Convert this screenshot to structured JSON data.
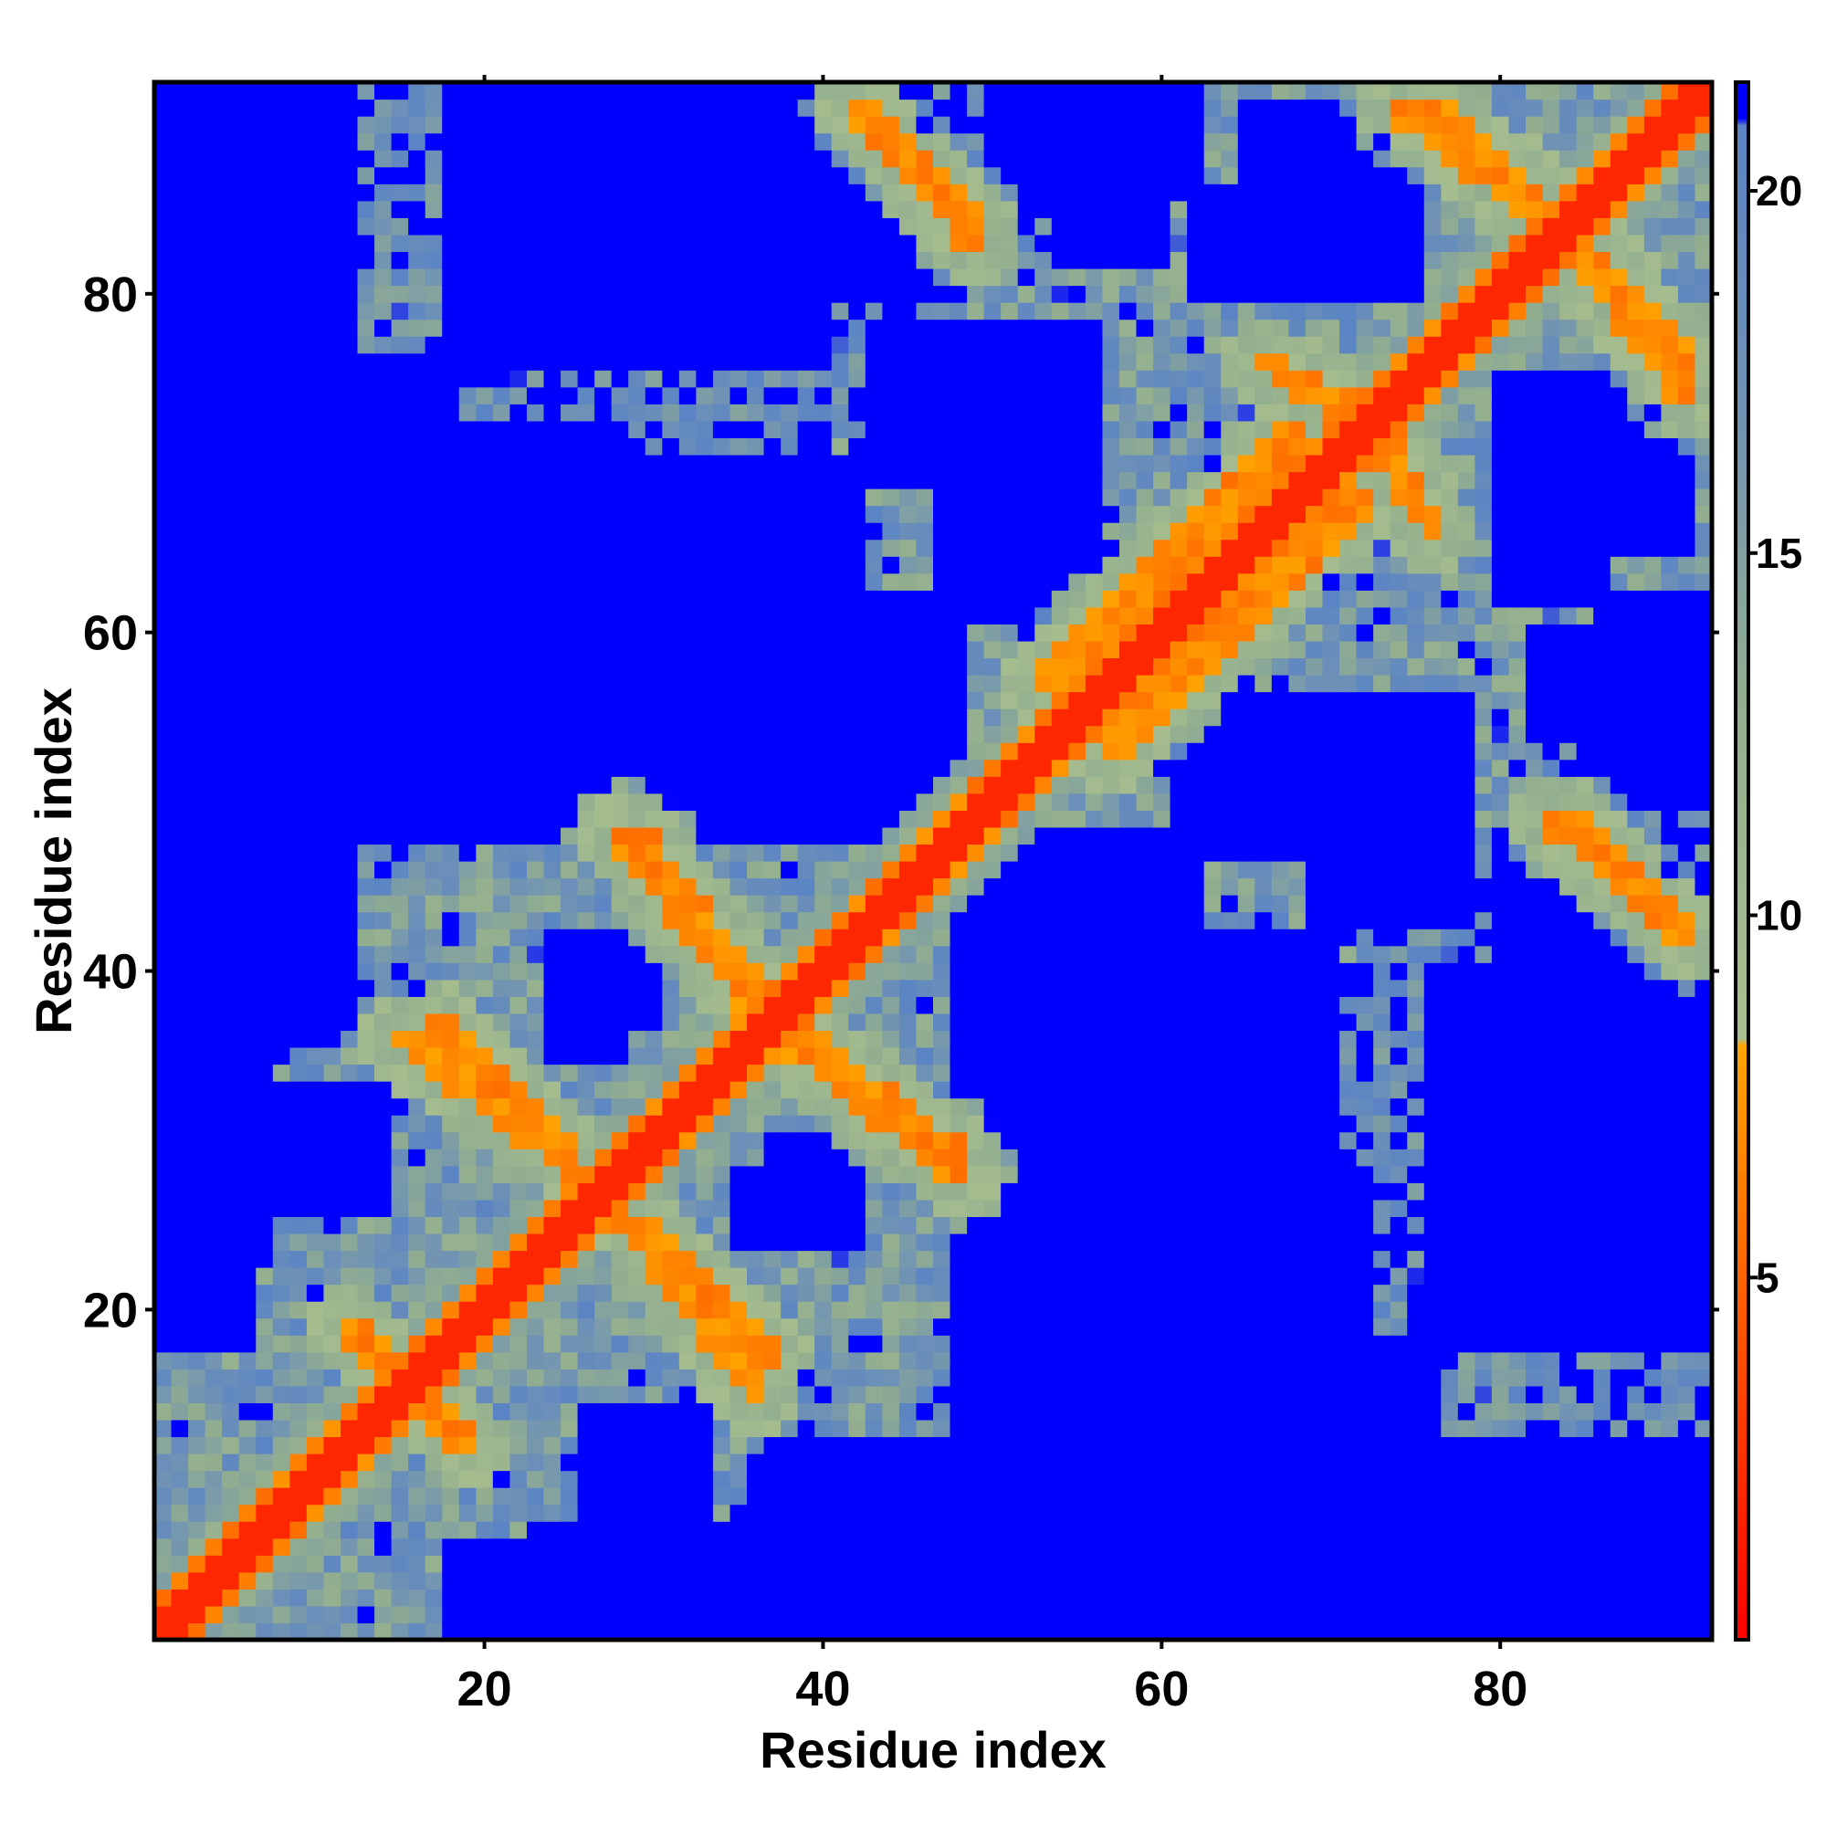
{
  "chart_data": {
    "type": "heatmap",
    "title": "",
    "xlabel": "Residue index",
    "ylabel": "Residue index",
    "n_residues": 92,
    "xlim": [
      1,
      92
    ],
    "ylim": [
      1,
      92
    ],
    "x_ticks": [
      20,
      40,
      60,
      80
    ],
    "y_ticks": [
      20,
      40,
      60,
      80
    ],
    "grid": false,
    "legend_position": "right",
    "colorbar": {
      "range": [
        0,
        21.5
      ],
      "ticks": [
        5,
        10,
        15,
        20
      ],
      "stops": [
        {
          "value": 0,
          "color": "#ff0000"
        },
        {
          "value": 3,
          "color": "#ff3a00"
        },
        {
          "value": 8.2,
          "color": "#ffa500"
        },
        {
          "value": 8.3,
          "color": "#a9bf8e"
        },
        {
          "value": 13,
          "color": "#92ae8f"
        },
        {
          "value": 17,
          "color": "#6f92b5"
        },
        {
          "value": 20.9,
          "color": "#5b84c4"
        },
        {
          "value": 21.0,
          "color": "#0000ff"
        }
      ]
    },
    "cutoff_value": 21,
    "colors": {
      "very_close": "#ff0000",
      "close": "#ff9900",
      "mid": "#a9bf8e",
      "far": "#6e8fb8",
      "beyond_cutoff": "#0000ff"
    },
    "contact_map_symmetric": true,
    "secondary_contacts": [
      {
        "from": [
          12,
          19
        ],
        "to": [
          19,
          12
        ],
        "distance": 6
      },
      {
        "from": [
          17,
          37
        ],
        "to": [
          25,
          29
        ],
        "distance": 6
      },
      {
        "from": [
          28,
          26
        ],
        "to": [
          36,
          15
        ],
        "distance": 6
      },
      {
        "from": [
          29,
          48
        ],
        "to": [
          36,
          39
        ],
        "distance": 6
      },
      {
        "from": [
          38,
          36
        ],
        "to": [
          48,
          28
        ],
        "distance": 6
      },
      {
        "from": [
          42,
          91
        ],
        "to": [
          49,
          84
        ],
        "distance": 6
      },
      {
        "from": [
          74,
          91
        ],
        "to": [
          83,
          84
        ],
        "distance": 6
      },
      {
        "from": [
          84,
          84
        ],
        "to": [
          91,
          76
        ],
        "distance": 6
      },
      {
        "from": [
          83,
          49
        ],
        "to": [
          91,
          42
        ],
        "distance": 6
      },
      {
        "from": [
          53,
          57
        ],
        "to": [
          68,
          72
        ],
        "distance": 6
      },
      {
        "from": [
          66,
          76
        ],
        "to": [
          73,
          72
        ],
        "distance": 6
      }
    ],
    "blue_regions": [
      {
        "x": [
          1,
          7
        ],
        "y": [
          23,
          92
        ]
      },
      {
        "x": [
          1,
          12
        ],
        "y": [
          36,
          92
        ]
      },
      {
        "x": [
          1,
          18
        ],
        "y": [
          50,
          76
        ]
      },
      {
        "x": [
          31,
          48
        ],
        "y": [
          48,
          62
        ]
      },
      {
        "x": [
          18,
          28
        ],
        "y": [
          62,
          72
        ]
      },
      {
        "x": [
          24,
          30
        ],
        "y": [
          37,
          42
        ]
      },
      {
        "x": [
          35,
          40
        ],
        "y": [
          24,
          28
        ]
      },
      {
        "x": [
          48,
          70
        ],
        "y": [
          1,
          42
        ]
      },
      {
        "x": [
          70,
          91
        ],
        "y": [
          1,
          8
        ]
      },
      {
        "x": [
          18,
          48
        ],
        "y": [
          1,
          6
        ]
      },
      {
        "x": [
          26,
          33
        ],
        "y": [
          1,
          14
        ]
      },
      {
        "x": [
          40,
          48
        ],
        "y": [
          80,
          91
        ]
      },
      {
        "x": [
          50,
          62
        ],
        "y": [
          86,
          92
        ]
      },
      {
        "x": [
          62,
          75
        ],
        "y": [
          80,
          86
        ]
      },
      {
        "x": [
          43,
          56
        ],
        "y": [
          69,
          78
        ]
      },
      {
        "x": [
          61,
          72
        ],
        "y": [
          47,
          56
        ]
      },
      {
        "x": [
          82,
          91
        ],
        "y": [
          65,
          75
        ]
      },
      {
        "x": [
          82,
          92
        ],
        "y": [
          54,
          60
        ]
      },
      {
        "x": [
          76,
          92
        ],
        "y": [
          18,
          40
        ]
      },
      {
        "x": [
          52,
          58
        ],
        "y": [
          42,
          47
        ]
      }
    ]
  }
}
